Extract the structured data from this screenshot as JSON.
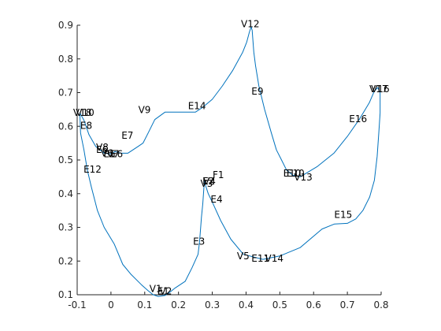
{
  "chart_data": {
    "type": "line",
    "title": "",
    "xlabel": "",
    "ylabel": "",
    "xlim": [
      -0.1,
      0.8
    ],
    "ylim": [
      0.1,
      0.9
    ],
    "grid": false,
    "box": false,
    "x_ticks": [
      -0.1,
      0,
      0.1,
      0.2,
      0.3,
      0.4,
      0.5,
      0.6,
      0.7,
      0.8
    ],
    "x_tick_labels": [
      "-0.1",
      "0",
      "0.1",
      "0.2",
      "0.3",
      "0.4",
      "0.5",
      "0.6",
      "0.7",
      "0.8"
    ],
    "y_ticks": [
      0.1,
      0.2,
      0.3,
      0.4,
      0.5,
      0.6,
      0.7,
      0.8,
      0.9
    ],
    "y_tick_labels": [
      "0.1",
      "0.2",
      "0.3",
      "0.4",
      "0.5",
      "0.6",
      "0.7",
      "0.8",
      "0.9"
    ],
    "line_color": "#0072BD",
    "highlight_color": "#FF0000",
    "series": [
      {
        "x": [
          0.28,
          0.288,
          0.3,
          0.325,
          0.355,
          0.392,
          0.45,
          0.5,
          0.56,
          0.625,
          0.662,
          0.7,
          0.725,
          0.746,
          0.766,
          0.78,
          0.788,
          0.793,
          0.797,
          0.797,
          0.79,
          0.78,
          0.765,
          0.735,
          0.7,
          0.66,
          0.61,
          0.56,
          0.538,
          0.52,
          0.505,
          0.49,
          0.475,
          0.455,
          0.438,
          0.428,
          0.423,
          0.42,
          0.418,
          0.415,
          0.41,
          0.402,
          0.39,
          0.36,
          0.33,
          0.3,
          0.27,
          0.25,
          0.22,
          0.16,
          0.13,
          0.11,
          0.095,
          0.08,
          0.05,
          0.03,
          0.012,
          0.005,
          -0.005,
          -0.02,
          -0.045,
          -0.065,
          -0.08,
          -0.092,
          -0.09,
          -0.08,
          -0.07,
          -0.058,
          -0.04,
          -0.02,
          0.01,
          0.035,
          0.06,
          0.09,
          0.11,
          0.125,
          0.14,
          0.16,
          0.175,
          0.19,
          0.22,
          0.24,
          0.258,
          0.262,
          0.265,
          0.268,
          0.272,
          0.274,
          0.276,
          0.278,
          0.28
        ],
        "y": [
          0.425,
          0.4,
          0.375,
          0.32,
          0.265,
          0.22,
          0.205,
          0.215,
          0.24,
          0.295,
          0.31,
          0.312,
          0.325,
          0.35,
          0.39,
          0.44,
          0.51,
          0.58,
          0.64,
          0.7,
          0.715,
          0.705,
          0.67,
          0.62,
          0.57,
          0.52,
          0.48,
          0.45,
          0.455,
          0.47,
          0.5,
          0.53,
          0.58,
          0.65,
          0.72,
          0.78,
          0.82,
          0.86,
          0.885,
          0.895,
          0.88,
          0.85,
          0.82,
          0.765,
          0.72,
          0.68,
          0.655,
          0.642,
          0.642,
          0.642,
          0.62,
          0.58,
          0.55,
          0.54,
          0.52,
          0.52,
          0.525,
          0.52,
          0.518,
          0.52,
          0.54,
          0.575,
          0.618,
          0.64,
          0.58,
          0.53,
          0.47,
          0.42,
          0.35,
          0.3,
          0.25,
          0.19,
          0.16,
          0.13,
          0.112,
          0.1,
          0.095,
          0.098,
          0.108,
          0.12,
          0.14,
          0.18,
          0.22,
          0.255,
          0.29,
          0.33,
          0.37,
          0.4,
          0.43,
          0.438,
          0.425
        ]
      }
    ],
    "annotations": [
      {
        "text": "V12",
        "x": 0.385,
        "y": 0.903,
        "color": "#000000"
      },
      {
        "text": "V17",
        "x": 0.765,
        "y": 0.71,
        "color": "#000000"
      },
      {
        "text": "V16",
        "x": 0.77,
        "y": 0.71,
        "color": "#000000"
      },
      {
        "text": "E9",
        "x": 0.416,
        "y": 0.703,
        "color": "#000000"
      },
      {
        "text": "V18",
        "x": -0.112,
        "y": 0.64,
        "color": "#000000"
      },
      {
        "text": "V10",
        "x": -0.104,
        "y": 0.64,
        "color": "#000000"
      },
      {
        "text": "E14",
        "x": 0.228,
        "y": 0.66,
        "color": "#000000"
      },
      {
        "text": "V9",
        "x": 0.081,
        "y": 0.648,
        "color": "#000000"
      },
      {
        "text": "E16",
        "x": 0.705,
        "y": 0.622,
        "color": "#000000"
      },
      {
        "text": "E8",
        "x": -0.091,
        "y": 0.602,
        "color": "#000000"
      },
      {
        "text": "E7",
        "x": 0.031,
        "y": 0.573,
        "color": "#000000"
      },
      {
        "text": "V8",
        "x": -0.044,
        "y": 0.537,
        "color": "#000000"
      },
      {
        "text": "E6",
        "x": -0.044,
        "y": 0.53,
        "color": "#000000"
      },
      {
        "text": "V6",
        "x": -0.03,
        "y": 0.52,
        "color": "#000000"
      },
      {
        "text": "E5",
        "x": -0.022,
        "y": 0.518,
        "color": "#000000"
      },
      {
        "text": "V7",
        "x": -0.012,
        "y": 0.518,
        "color": "#000000"
      },
      {
        "text": "E6",
        "x": 0.0,
        "y": 0.518,
        "color": "#000000"
      },
      {
        "text": "E12",
        "x": -0.081,
        "y": 0.472,
        "color": "#000000"
      },
      {
        "text": "E10",
        "x": 0.51,
        "y": 0.46,
        "color": "#000000"
      },
      {
        "text": "E10",
        "x": 0.52,
        "y": 0.46,
        "color": "#000000"
      },
      {
        "text": "V13",
        "x": 0.542,
        "y": 0.449,
        "color": "#000000"
      },
      {
        "text": "F1",
        "x": 0.301,
        "y": 0.456,
        "color": "#FF0000"
      },
      {
        "text": "E2",
        "x": 0.271,
        "y": 0.437,
        "color": "#000000"
      },
      {
        "text": "V4",
        "x": 0.273,
        "y": 0.437,
        "color": "#000000"
      },
      {
        "text": "V3",
        "x": 0.265,
        "y": 0.43,
        "color": "#000000"
      },
      {
        "text": "E4",
        "x": 0.295,
        "y": 0.383,
        "color": "#000000"
      },
      {
        "text": "E15",
        "x": 0.661,
        "y": 0.338,
        "color": "#000000"
      },
      {
        "text": "E3",
        "x": 0.243,
        "y": 0.258,
        "color": "#000000"
      },
      {
        "text": "V5",
        "x": 0.373,
        "y": 0.215,
        "color": "#000000"
      },
      {
        "text": "E11",
        "x": 0.416,
        "y": 0.208,
        "color": "#000000"
      },
      {
        "text": "V14",
        "x": 0.456,
        "y": 0.208,
        "color": "#000000"
      },
      {
        "text": "V1",
        "x": 0.114,
        "y": 0.117,
        "color": "#000000"
      },
      {
        "text": "E1",
        "x": 0.137,
        "y": 0.11,
        "color": "#000000"
      },
      {
        "text": "V2",
        "x": 0.144,
        "y": 0.11,
        "color": "#000000"
      }
    ]
  }
}
